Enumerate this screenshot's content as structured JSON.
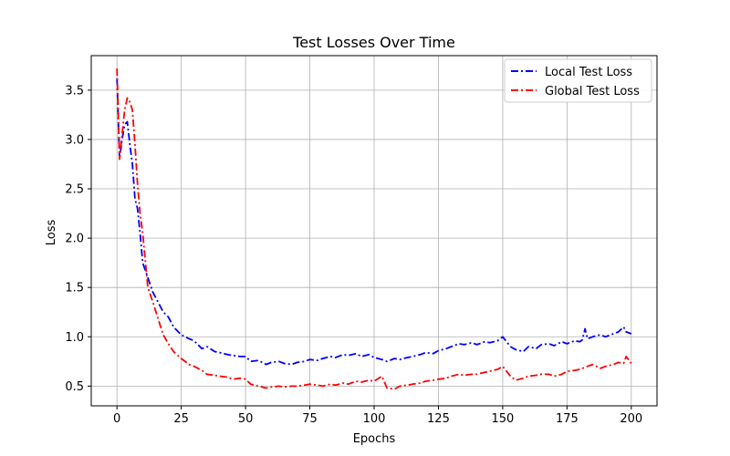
{
  "chart_data": {
    "type": "line",
    "title": "Test Losses Over Time",
    "xlabel": "Epochs",
    "ylabel": "Loss",
    "xlim": [
      -10,
      210
    ],
    "ylim": [
      0.3,
      3.85
    ],
    "xticks": [
      0,
      25,
      50,
      75,
      100,
      125,
      150,
      175,
      200
    ],
    "yticks": [
      0.5,
      1.0,
      1.5,
      2.0,
      2.5,
      3.0,
      3.5
    ],
    "grid": true,
    "legend_position": "top-right",
    "series": [
      {
        "name": "Local Test Loss",
        "color": "#0000ff",
        "line_style": "dash-dot",
        "x": [
          0,
          1,
          2,
          3,
          4,
          5,
          6,
          7,
          8,
          9,
          10,
          12,
          14,
          16,
          18,
          20,
          22,
          25,
          28,
          30,
          33,
          35,
          38,
          40,
          43,
          45,
          48,
          50,
          52,
          55,
          58,
          60,
          63,
          65,
          68,
          70,
          73,
          75,
          78,
          80,
          83,
          85,
          88,
          90,
          93,
          95,
          98,
          100,
          103,
          105,
          108,
          110,
          113,
          115,
          118,
          120,
          123,
          125,
          128,
          130,
          133,
          135,
          138,
          140,
          143,
          145,
          148,
          150,
          153,
          155,
          158,
          160,
          163,
          165,
          168,
          170,
          173,
          175,
          178,
          180,
          181,
          182,
          183,
          185,
          188,
          190,
          193,
          195,
          197,
          198,
          200
        ],
        "y": [
          3.62,
          2.8,
          3.0,
          3.15,
          3.18,
          2.95,
          2.75,
          2.4,
          2.3,
          2.05,
          1.75,
          1.6,
          1.45,
          1.35,
          1.25,
          1.2,
          1.1,
          1.02,
          0.98,
          0.96,
          0.88,
          0.9,
          0.85,
          0.84,
          0.82,
          0.81,
          0.8,
          0.8,
          0.75,
          0.76,
          0.72,
          0.74,
          0.75,
          0.73,
          0.72,
          0.74,
          0.75,
          0.77,
          0.76,
          0.78,
          0.8,
          0.79,
          0.82,
          0.81,
          0.83,
          0.8,
          0.82,
          0.79,
          0.77,
          0.75,
          0.78,
          0.77,
          0.79,
          0.8,
          0.82,
          0.84,
          0.83,
          0.86,
          0.88,
          0.9,
          0.93,
          0.92,
          0.94,
          0.92,
          0.95,
          0.94,
          0.96,
          1.0,
          0.9,
          0.87,
          0.85,
          0.9,
          0.88,
          0.92,
          0.93,
          0.91,
          0.95,
          0.93,
          0.96,
          0.95,
          0.97,
          1.08,
          0.98,
          1.0,
          1.02,
          1.0,
          1.03,
          1.05,
          1.1,
          1.05,
          1.03
        ]
      },
      {
        "name": "Global Test Loss",
        "color": "#ff0000",
        "line_style": "dash-dot",
        "x": [
          0,
          1,
          2,
          3,
          4,
          5,
          6,
          7,
          8,
          9,
          10,
          12,
          14,
          16,
          18,
          20,
          22,
          25,
          28,
          30,
          33,
          35,
          38,
          40,
          43,
          45,
          48,
          50,
          52,
          55,
          58,
          60,
          63,
          65,
          68,
          70,
          73,
          75,
          78,
          80,
          83,
          85,
          88,
          90,
          93,
          95,
          98,
          100,
          103,
          105,
          108,
          110,
          113,
          115,
          118,
          120,
          123,
          125,
          128,
          130,
          133,
          135,
          138,
          140,
          143,
          145,
          148,
          150,
          153,
          155,
          158,
          160,
          163,
          165,
          168,
          170,
          173,
          175,
          178,
          180,
          183,
          185,
          188,
          190,
          193,
          195,
          197,
          198,
          200
        ],
        "y": [
          3.72,
          2.8,
          3.05,
          3.3,
          3.42,
          3.38,
          3.3,
          2.95,
          2.55,
          2.25,
          2.05,
          1.5,
          1.35,
          1.18,
          1.02,
          0.93,
          0.85,
          0.78,
          0.72,
          0.7,
          0.66,
          0.62,
          0.61,
          0.6,
          0.59,
          0.57,
          0.58,
          0.57,
          0.52,
          0.5,
          0.48,
          0.49,
          0.5,
          0.49,
          0.5,
          0.5,
          0.51,
          0.52,
          0.51,
          0.5,
          0.52,
          0.51,
          0.53,
          0.52,
          0.55,
          0.54,
          0.56,
          0.55,
          0.6,
          0.48,
          0.47,
          0.5,
          0.51,
          0.52,
          0.53,
          0.55,
          0.56,
          0.57,
          0.58,
          0.6,
          0.62,
          0.61,
          0.62,
          0.62,
          0.64,
          0.65,
          0.67,
          0.7,
          0.6,
          0.56,
          0.58,
          0.6,
          0.61,
          0.62,
          0.62,
          0.6,
          0.62,
          0.65,
          0.66,
          0.67,
          0.7,
          0.72,
          0.68,
          0.7,
          0.72,
          0.74,
          0.73,
          0.8,
          0.73
        ]
      }
    ]
  }
}
